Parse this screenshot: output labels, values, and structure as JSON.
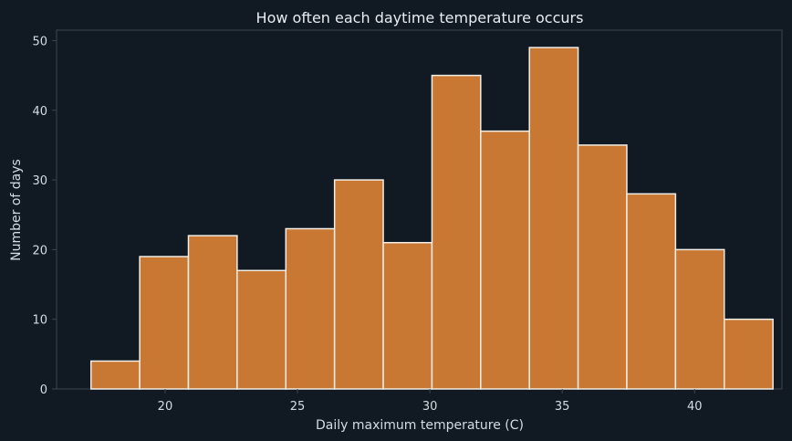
{
  "chart_data": {
    "type": "bar",
    "title": "How often each daytime temperature occurs",
    "xlabel": "Daily maximum temperature (C)",
    "ylabel": "Number of days",
    "bin_edges": [
      17.2,
      19.04,
      20.88,
      22.72,
      24.56,
      26.4,
      28.24,
      30.08,
      31.92,
      33.76,
      35.6,
      37.44,
      39.28,
      41.12,
      42.96
    ],
    "values": [
      4,
      19,
      22,
      17,
      23,
      30,
      21,
      45,
      37,
      49,
      35,
      28,
      20,
      10
    ],
    "xlim": [
      15.9,
      43.3
    ],
    "ylim": [
      0,
      51.5
    ],
    "xticks": [
      20,
      25,
      30,
      35,
      40
    ],
    "yticks": [
      0,
      10,
      20,
      30,
      40,
      50
    ],
    "grid": false,
    "colors": {
      "background": "#111a23",
      "bar_fill": "#c87833",
      "bar_edge": "#f2ede6",
      "axis": "#3a4652",
      "text": "#d4dce3",
      "title": "#e8edf2"
    }
  }
}
